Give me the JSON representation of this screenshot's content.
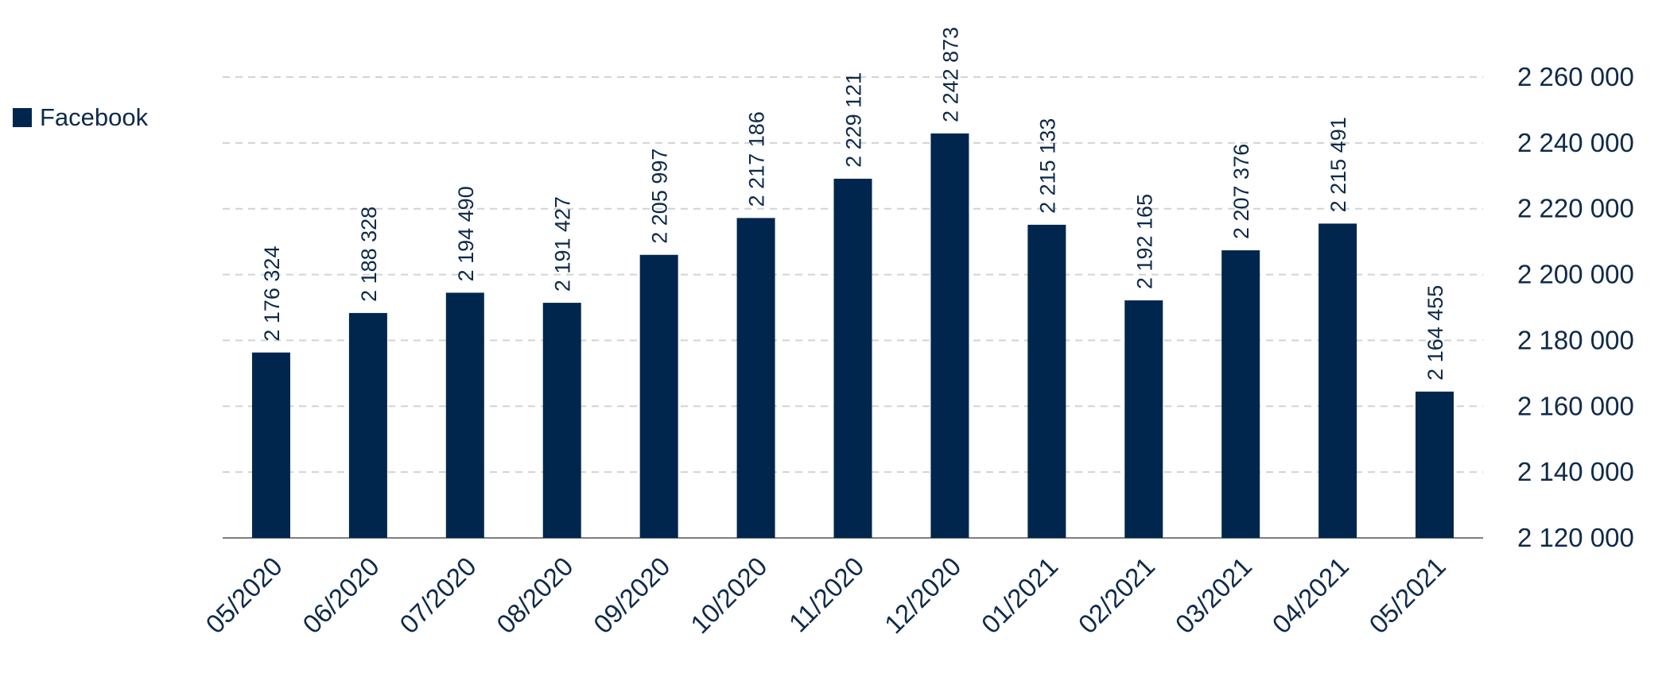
{
  "colors": {
    "bar": "#00264d",
    "text": "#0f2a4a",
    "grid": "#d3d3d3",
    "axis": "#7f7f7f"
  },
  "legend": {
    "label": "Facebook"
  },
  "chart_data": {
    "type": "bar",
    "title": "",
    "xlabel": "",
    "ylabel": "",
    "categories": [
      "05/2020",
      "06/2020",
      "07/2020",
      "08/2020",
      "09/2020",
      "10/2020",
      "11/2020",
      "12/2020",
      "01/2021",
      "02/2021",
      "03/2021",
      "04/2021",
      "05/2021"
    ],
    "series": [
      {
        "name": "Facebook",
        "values": [
          2176324,
          2188328,
          2194490,
          2191427,
          2205997,
          2217186,
          2229121,
          2242873,
          2215133,
          2192165,
          2207376,
          2215491,
          2164455
        ],
        "labels": [
          "2 176 324",
          "2 188 328",
          "2 194 490",
          "2 191 427",
          "2 205 997",
          "2 217 186",
          "2 229 121",
          "2 242 873",
          "2 215 133",
          "2 192 165",
          "2 207 376",
          "2 215 491",
          "2 164 455"
        ]
      }
    ],
    "ylim": [
      2120000,
      2260000
    ],
    "yticks": [
      2120000,
      2140000,
      2160000,
      2180000,
      2200000,
      2220000,
      2240000,
      2260000
    ],
    "ytick_labels": [
      "2 120 000",
      "2 140 000",
      "2 160 000",
      "2 180 000",
      "2 200 000",
      "2 220 000",
      "2 240 000",
      "2 260 000"
    ],
    "y_axis_side": "right",
    "grid": true,
    "legend_position": "top-left"
  }
}
